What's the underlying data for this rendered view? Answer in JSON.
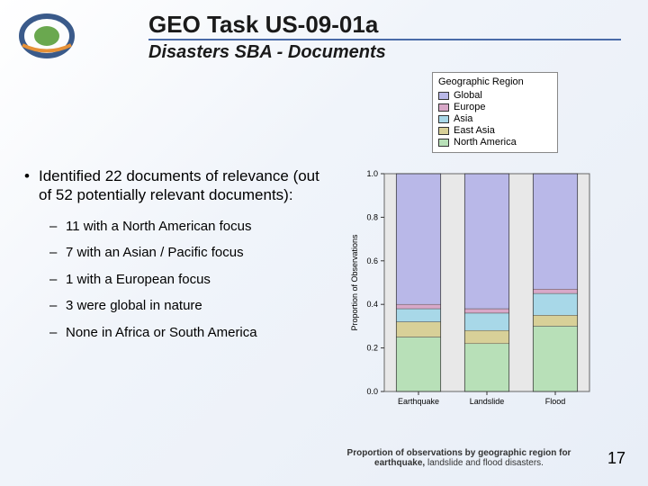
{
  "header": {
    "title": "GEO Task US-09-01a",
    "subtitle": "Disasters SBA - Documents"
  },
  "content": {
    "main_bullet": "Identified 22 documents of relevance (out of 52 potentially relevant documents):",
    "sub_bullets": [
      "11 with a North American focus",
      "7 with an Asian / Pacific focus",
      "1 with a European focus",
      "3 were global in nature",
      "None in Africa or South America"
    ]
  },
  "legend": {
    "title": "Geographic Region",
    "items": [
      {
        "label": "Global",
        "color": "#b9b8e8"
      },
      {
        "label": "Europe",
        "color": "#d8a8c8"
      },
      {
        "label": "Asia",
        "color": "#a8d8e8"
      },
      {
        "label": "East Asia",
        "color": "#d8d098"
      },
      {
        "label": "North America",
        "color": "#b8e0b8"
      }
    ]
  },
  "chart": {
    "type": "stacked_bar",
    "ylabel": "Proportion of Observations",
    "ylim": [
      0,
      1.0
    ],
    "ytick_step": 0.2,
    "yticks": [
      "0.0",
      "0.2",
      "0.4",
      "0.6",
      "0.8",
      "1.0"
    ],
    "categories": [
      "Earthquake",
      "Landslide",
      "Flood"
    ],
    "background_color": "#e8e8e8",
    "plot_bg": "#e8e8e8",
    "bar_width": 0.65,
    "series_order": [
      "North America",
      "East Asia",
      "Asia",
      "Europe",
      "Global"
    ],
    "data": {
      "Earthquake": {
        "North America": 0.25,
        "East Asia": 0.07,
        "Asia": 0.06,
        "Europe": 0.02,
        "Global": 0.6
      },
      "Landslide": {
        "North America": 0.22,
        "East Asia": 0.06,
        "Asia": 0.08,
        "Europe": 0.02,
        "Global": 0.62
      },
      "Flood": {
        "North America": 0.3,
        "East Asia": 0.05,
        "Asia": 0.1,
        "Europe": 0.02,
        "Global": 0.53
      }
    },
    "colors": {
      "Global": "#b9b8e8",
      "Europe": "#d8a8c8",
      "Asia": "#a8d8e8",
      "East Asia": "#d8d098",
      "North America": "#b8e0b8"
    },
    "label_fontsize": 9,
    "tick_fontsize": 9
  },
  "caption": {
    "bold": "Proportion of observations by geographic region for earthquake,",
    "rest": "landslide and flood disasters."
  },
  "page_number": "17",
  "logo": {
    "outer_color": "#3a5a8a",
    "inner_color": "#6aa84f",
    "swoosh_color": "#e69138"
  }
}
